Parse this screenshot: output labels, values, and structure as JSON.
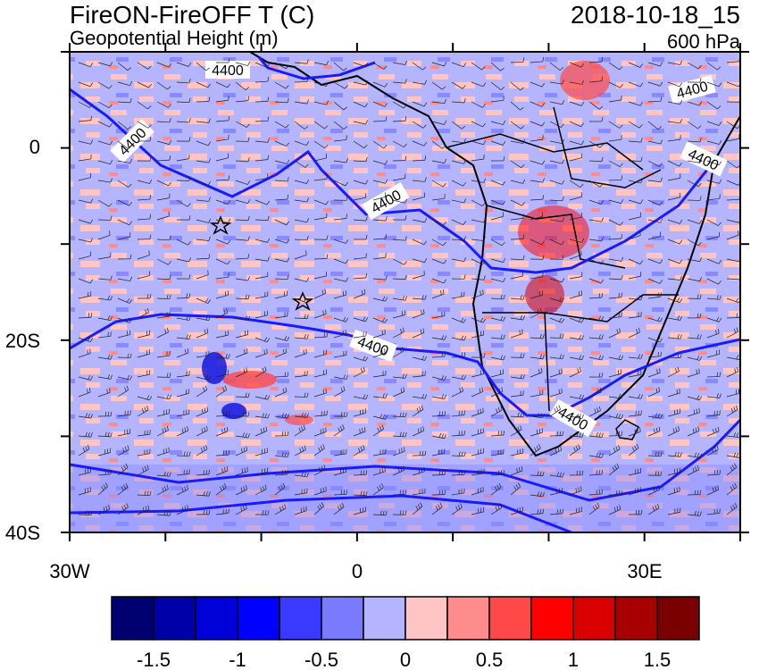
{
  "header": {
    "title_left": "FireON-FireOFF T (C)",
    "subtitle": "Geopotential Height (m)",
    "title_right": "2018-10-18_15",
    "level": "600 hPa"
  },
  "axes": {
    "lon_ticks": [
      {
        "value": -30,
        "label": "30W"
      },
      {
        "value": 0,
        "label": "0"
      },
      {
        "value": 30,
        "label": "30E"
      }
    ],
    "lat_ticks": [
      {
        "value": 0,
        "label": "0"
      },
      {
        "value": -20,
        "label": "20S"
      },
      {
        "value": -40,
        "label": "40S"
      }
    ],
    "lon_range": [
      -30,
      40
    ],
    "lat_range": [
      -40,
      10
    ]
  },
  "contours": {
    "level_label": "4400",
    "labels": [
      "4400",
      "4400",
      "4400",
      "4400",
      "4400",
      "4400",
      "4400"
    ]
  },
  "colorbar": {
    "labels": [
      "-1.5",
      "-1",
      "-0.5",
      "0",
      "0.5",
      "1",
      "1.5"
    ],
    "colors": [
      "#000070",
      "#0000a8",
      "#0000d8",
      "#0000ff",
      "#3a3aff",
      "#7a7aff",
      "#b4b4ff",
      "#ffc4c4",
      "#ff8c8c",
      "#ff4848",
      "#ff0000",
      "#d80000",
      "#a80000",
      "#780000"
    ]
  },
  "colors": {
    "contour": "#1a1aff",
    "land_border": "#000000",
    "pos_fill": "#ffc4c4",
    "neg_fill": "#b4b4ff"
  }
}
